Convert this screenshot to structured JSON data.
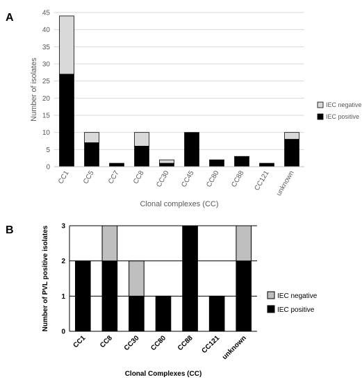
{
  "panels": {
    "a_label": "A",
    "b_label": "B"
  },
  "colors": {
    "a_positive": "#000000",
    "a_negative": "#d9d9d9",
    "b_positive": "#000000",
    "b_negative": "#bfbfbf",
    "grid_a": "#d9d9d9",
    "grid_b": "#000000"
  },
  "chart_data": [
    {
      "type": "bar",
      "stacked": true,
      "categories": [
        "CC1",
        "CC5",
        "CC7",
        "CC8",
        "CC30",
        "CC45",
        "CC80",
        "CC88",
        "CC121",
        "unknown"
      ],
      "series": [
        {
          "name": "IEC positive",
          "values": [
            27,
            7,
            1,
            6,
            1,
            10,
            2,
            3,
            1,
            8
          ]
        },
        {
          "name": "IEC negative",
          "values": [
            17,
            3,
            0,
            4,
            1,
            0,
            0,
            0,
            0,
            2
          ]
        }
      ],
      "xlabel": "Clonal complexes (CC)",
      "ylabel": "Number of isolates",
      "ylim": [
        0,
        45
      ],
      "yticks": [
        "0",
        "5",
        "10",
        "15",
        "20",
        "25",
        "30",
        "35",
        "40",
        "45"
      ],
      "grid": true,
      "legend": "right",
      "legend_order": [
        "IEC negative",
        "IEC positive"
      ]
    },
    {
      "type": "bar",
      "stacked": true,
      "categories": [
        "CC1",
        "CC8",
        "CC30",
        "CC80",
        "CC88",
        "CC121",
        "unknown"
      ],
      "series": [
        {
          "name": "IEC positive",
          "values": [
            2,
            2,
            1,
            1,
            3,
            1,
            2
          ]
        },
        {
          "name": "IEC negative",
          "values": [
            0,
            1,
            1,
            0,
            0,
            0,
            1
          ]
        }
      ],
      "xlabel": "Clonal Complexes (CC)",
      "ylabel": "Number of PVL positive isolates",
      "ylim": [
        0,
        3
      ],
      "yticks": [
        "0",
        "1",
        "2",
        "3"
      ],
      "grid": true,
      "legend": "right",
      "legend_order": [
        "IEC negative",
        "IEC positive"
      ]
    }
  ]
}
